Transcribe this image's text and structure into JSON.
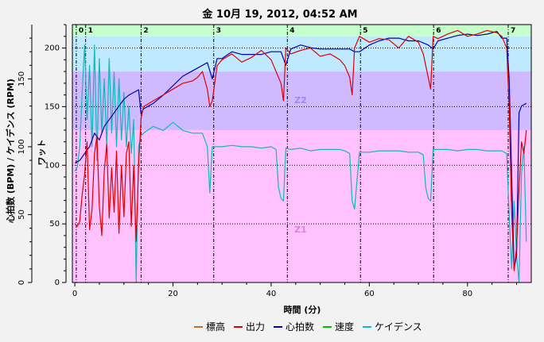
{
  "chart_data": {
    "type": "line",
    "title": "金 10月 19, 2012, 04:52 AM",
    "xlabel": "時間 (分)",
    "ylabel_left": "心拍数 (BPM) / ケイデンス (RPM)",
    "ylabel_right": "ワット",
    "xlim": [
      -0.5,
      93
    ],
    "xticks": [
      0,
      20,
      40,
      60,
      80
    ],
    "ylim_left": [
      0,
      190
    ],
    "yticks_left": [
      0,
      50,
      100,
      150
    ],
    "ylim_right": [
      0,
      220
    ],
    "yticks_right": [
      0,
      50,
      100,
      150,
      200
    ],
    "zones": [
      {
        "name": "Z1",
        "from": 0,
        "to": 130,
        "color": "#ffc2ff"
      },
      {
        "name": "Z2",
        "from": 130,
        "to": 180,
        "color": "#cfbaff"
      },
      {
        "name": "",
        "from": 180,
        "to": 210,
        "color": "#bfe9ff"
      },
      {
        "name": "",
        "from": 210,
        "to": 220,
        "color": "#c4ffcc"
      }
    ],
    "zone_label_color": {
      "Z1": "#e37ee3",
      "Z2": "#9e87ff"
    },
    "laps": [
      {
        "label": "0",
        "t": 0.3
      },
      {
        "label": "1",
        "t": 2.2
      },
      {
        "label": "2",
        "t": 13.5
      },
      {
        "label": "3",
        "t": 28.3
      },
      {
        "label": "4",
        "t": 43.3
      },
      {
        "label": "5",
        "t": 58.2
      },
      {
        "label": "6",
        "t": 73.1
      },
      {
        "label": "7",
        "t": 88.3
      }
    ],
    "dotted_gridlines_right": [
      50,
      100,
      150,
      200
    ],
    "series": [
      {
        "name": "標高",
        "color": "#b87333",
        "axis": "right",
        "x": [],
        "values": []
      },
      {
        "name": "出力",
        "color": "#e00000",
        "axis": "right",
        "x": [
          0,
          0.5,
          1,
          1.5,
          2,
          2.5,
          3,
          3.5,
          4,
          4.5,
          5,
          5.5,
          6,
          6.5,
          7,
          7.5,
          8,
          8.5,
          9,
          9.5,
          10,
          10.5,
          11,
          11.5,
          12,
          12.5,
          13,
          13.5,
          14,
          16,
          18,
          20,
          22,
          24,
          25,
          26,
          27,
          27.5,
          28,
          29,
          30,
          32,
          34,
          36,
          38,
          40,
          41,
          42,
          42.5,
          43,
          44,
          46,
          48,
          50,
          52,
          54,
          55,
          56,
          56.5,
          57,
          58,
          60,
          62,
          64,
          66,
          68,
          70,
          71,
          72,
          72.5,
          73,
          74,
          76,
          78,
          80,
          82,
          84,
          86,
          87,
          88,
          88.5,
          89,
          89.5,
          90,
          90.5,
          91,
          91.5,
          92
        ],
        "values": [
          50,
          48,
          52,
          75,
          92,
          120,
          45,
          62,
          110,
          125,
          65,
          40,
          95,
          118,
          55,
          98,
          60,
          112,
          42,
          100,
          56,
          110,
          120,
          48,
          100,
          35,
          100,
          140,
          150,
          155,
          160,
          165,
          170,
          172,
          175,
          180,
          165,
          150,
          155,
          185,
          190,
          195,
          188,
          192,
          198,
          190,
          180,
          170,
          155,
          200,
          195,
          198,
          200,
          193,
          195,
          190,
          185,
          175,
          160,
          200,
          210,
          205,
          208,
          207,
          200,
          210,
          205,
          195,
          175,
          165,
          210,
          208,
          212,
          215,
          210,
          212,
          215,
          213,
          210,
          200,
          150,
          60,
          10,
          30,
          80,
          120,
          110,
          130
        ]
      },
      {
        "name": "心拍数",
        "color": "#0000b0",
        "axis": "left",
        "x": [
          0,
          1,
          2,
          3,
          4,
          5,
          6,
          7,
          8,
          9,
          10,
          11,
          12,
          13,
          13.5,
          14,
          16,
          18,
          20,
          22,
          24,
          26,
          27,
          28,
          29,
          30,
          32,
          34,
          36,
          38,
          40,
          42,
          43,
          44,
          46,
          48,
          50,
          52,
          54,
          56,
          57,
          58,
          60,
          62,
          64,
          66,
          68,
          70,
          72,
          73,
          74,
          76,
          78,
          80,
          82,
          84,
          86,
          87,
          88,
          88.5,
          89,
          89.5,
          90,
          90.5,
          91,
          92
        ],
        "values": [
          88,
          90,
          95,
          100,
          110,
          105,
          115,
          120,
          125,
          130,
          135,
          138,
          140,
          142,
          124,
          128,
          132,
          138,
          145,
          152,
          156,
          160,
          162,
          150,
          165,
          165,
          170,
          168,
          168,
          168,
          170,
          170,
          160,
          172,
          175,
          173,
          172,
          172,
          172,
          172,
          170,
          170,
          175,
          178,
          180,
          180,
          178,
          178,
          175,
          172,
          178,
          180,
          182,
          183,
          182,
          183,
          185,
          180,
          180,
          150,
          80,
          10,
          20,
          125,
          130,
          132
        ]
      },
      {
        "name": "速度",
        "color": "#00c000",
        "axis": "left",
        "x": [],
        "values": []
      },
      {
        "name": "ケイデンス",
        "color": "#10b8b8",
        "axis": "left",
        "x": [
          0,
          0.5,
          1,
          1.5,
          2,
          2.5,
          3,
          3.5,
          4,
          4.5,
          5,
          5.5,
          6,
          6.5,
          7,
          7.5,
          8,
          8.5,
          9,
          9.5,
          10,
          10.5,
          11,
          11.5,
          12,
          12.5,
          13,
          13.5,
          14,
          16,
          18,
          20,
          22,
          24,
          26,
          27,
          27.5,
          28,
          29,
          30,
          32,
          34,
          36,
          38,
          40,
          41,
          41.5,
          42,
          42.5,
          43,
          44,
          46,
          48,
          50,
          52,
          54,
          55,
          56,
          56.5,
          57,
          58,
          60,
          62,
          64,
          66,
          68,
          70,
          71,
          71.5,
          72,
          72.5,
          73,
          74,
          76,
          78,
          80,
          82,
          84,
          86,
          87,
          88,
          88.5,
          89,
          89.5,
          90,
          90.5,
          91,
          91.5,
          92
        ],
        "values": [
          82,
          85,
          100,
          140,
          175,
          120,
          160,
          100,
          175,
          90,
          165,
          110,
          150,
          100,
          165,
          110,
          155,
          100,
          150,
          105,
          140,
          100,
          130,
          95,
          120,
          0,
          100,
          108,
          110,
          115,
          112,
          118,
          112,
          110,
          110,
          100,
          66,
          100,
          100,
          100,
          101,
          100,
          100,
          99,
          100,
          98,
          70,
          62,
          60,
          99,
          98,
          99,
          97,
          98,
          98,
          98,
          97,
          95,
          60,
          54,
          96,
          96,
          97,
          97,
          97,
          96,
          96,
          94,
          70,
          62,
          60,
          98,
          98,
          98,
          97,
          98,
          98,
          97,
          97,
          97,
          95,
          50,
          10,
          60,
          20,
          0,
          80,
          100,
          30
        ]
      }
    ],
    "legend": [
      "標高",
      "出力",
      "心拍数",
      "速度",
      "ケイデンス"
    ],
    "legend_position": "bottom"
  }
}
